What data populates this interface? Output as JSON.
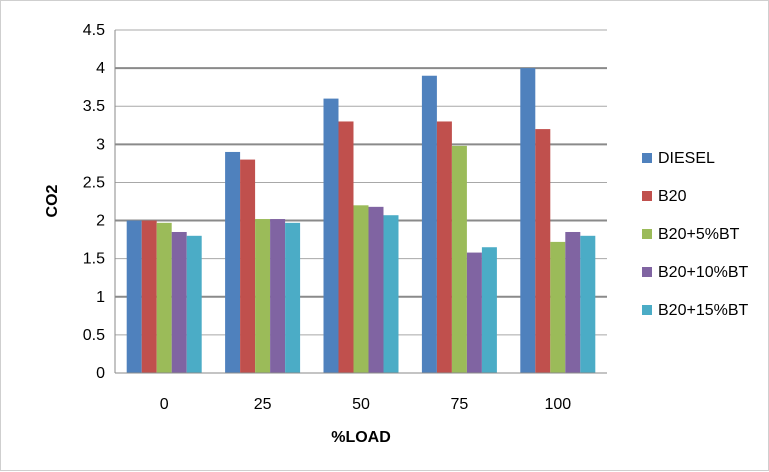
{
  "chart_data": {
    "type": "bar",
    "categories": [
      "0",
      "25",
      "50",
      "75",
      "100"
    ],
    "series": [
      {
        "name": "DIESEL",
        "color": "#4F81BD",
        "values": [
          2.0,
          2.9,
          3.6,
          3.9,
          4.0
        ]
      },
      {
        "name": "B20",
        "color": "#C0504D",
        "values": [
          2.0,
          2.8,
          3.3,
          3.3,
          3.2
        ]
      },
      {
        "name": "B20+5%BT",
        "color": "#9BBB59",
        "values": [
          1.97,
          2.02,
          2.2,
          2.98,
          1.72
        ]
      },
      {
        "name": "B20+10%BT",
        "color": "#8064A2",
        "values": [
          1.85,
          2.02,
          2.18,
          1.58,
          1.85
        ]
      },
      {
        "name": "B20+15%BT",
        "color": "#4BACC6",
        "values": [
          1.8,
          1.97,
          2.07,
          1.65,
          1.8
        ]
      }
    ],
    "xlabel": "%LOAD",
    "ylabel": "CO2",
    "ylim": [
      0,
      4.5
    ],
    "yticks": [
      "0",
      "0.5",
      "1",
      "1.5",
      "2",
      "2.5",
      "3",
      "3.5",
      "4",
      "4.5"
    ],
    "grid": true,
    "legend_position": "right"
  }
}
